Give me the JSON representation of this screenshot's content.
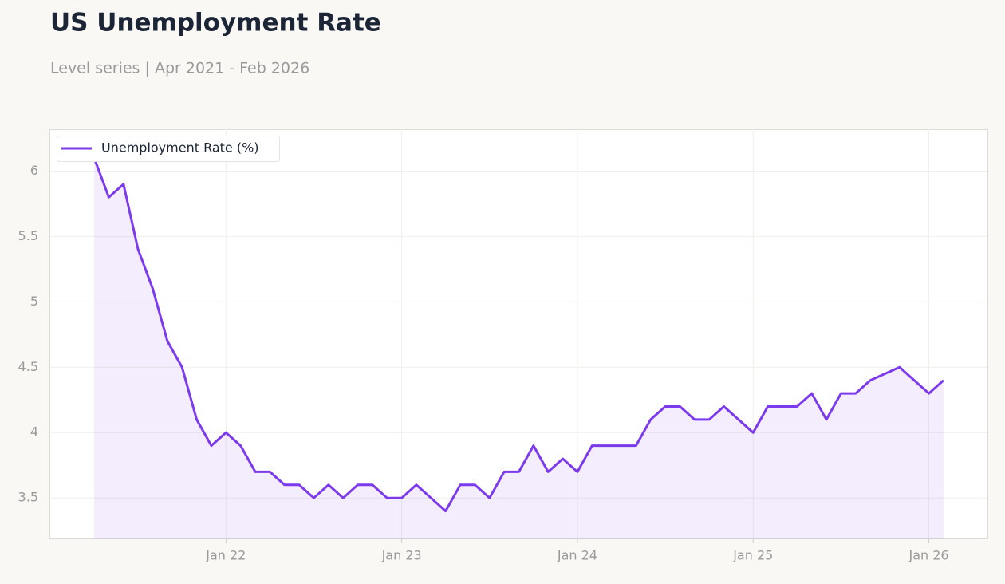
{
  "chart_data": {
    "type": "line",
    "title": "US Unemployment Rate",
    "subtitle": "Level series | Apr 2021 - Feb 2026",
    "x": [
      "2021-04",
      "2021-05",
      "2021-06",
      "2021-07",
      "2021-08",
      "2021-09",
      "2021-10",
      "2021-11",
      "2021-12",
      "2022-01",
      "2022-02",
      "2022-03",
      "2022-04",
      "2022-05",
      "2022-06",
      "2022-07",
      "2022-08",
      "2022-09",
      "2022-10",
      "2022-11",
      "2022-12",
      "2023-01",
      "2023-02",
      "2023-03",
      "2023-04",
      "2023-05",
      "2023-06",
      "2023-07",
      "2023-08",
      "2023-09",
      "2023-10",
      "2023-11",
      "2023-12",
      "2024-01",
      "2024-02",
      "2024-03",
      "2024-04",
      "2024-05",
      "2024-06",
      "2024-07",
      "2024-08",
      "2024-09",
      "2024-10",
      "2024-11",
      "2024-12",
      "2025-01",
      "2025-02",
      "2025-03",
      "2025-04",
      "2025-05",
      "2025-06",
      "2025-07",
      "2025-08",
      "2025-09",
      "2025-11",
      "2025-12",
      "2026-01",
      "2026-02"
    ],
    "series": [
      {
        "name": "Unemployment Rate (%)",
        "color": "#7c3aed",
        "values": [
          6.1,
          5.8,
          5.9,
          5.4,
          5.1,
          4.7,
          4.5,
          4.1,
          3.9,
          4.0,
          3.9,
          3.7,
          3.7,
          3.6,
          3.6,
          3.5,
          3.6,
          3.5,
          3.6,
          3.6,
          3.5,
          3.5,
          3.6,
          3.5,
          3.4,
          3.6,
          3.6,
          3.5,
          3.7,
          3.7,
          3.9,
          3.7,
          3.8,
          3.7,
          3.9,
          3.9,
          3.9,
          3.9,
          4.1,
          4.2,
          4.2,
          4.1,
          4.1,
          4.2,
          4.1,
          4.0,
          4.2,
          4.2,
          4.2,
          4.3,
          4.1,
          4.3,
          4.3,
          4.4,
          4.5,
          4.4,
          4.3,
          4.4
        ]
      }
    ],
    "xlim": [
      "2021-01",
      "2026-05"
    ],
    "xticks": [
      {
        "value": "2022-01",
        "label": "Jan 22"
      },
      {
        "value": "2023-01",
        "label": "Jan 23"
      },
      {
        "value": "2024-01",
        "label": "Jan 24"
      },
      {
        "value": "2025-01",
        "label": "Jan 25"
      },
      {
        "value": "2026-01",
        "label": "Jan 26"
      }
    ],
    "ylim": [
      3.19,
      6.32
    ],
    "yticks": [
      3.5,
      4,
      4.5,
      5,
      5.5,
      6
    ],
    "grid": true,
    "legend": "upper left"
  }
}
